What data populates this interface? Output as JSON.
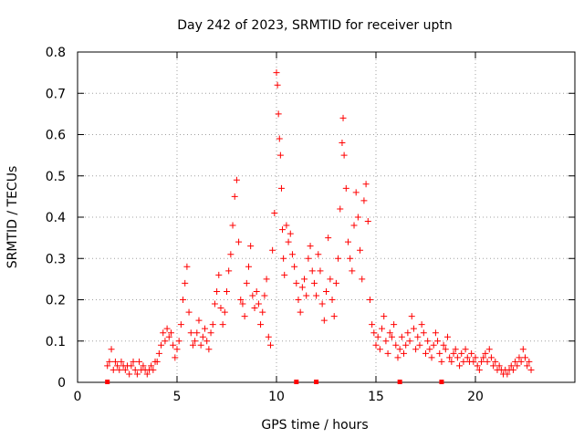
{
  "chart_data": {
    "type": "scatter",
    "title": "Day 242 of 2023, SRMTID for receiver uptn",
    "xlabel": "GPS time / hours",
    "ylabel": "SRMTID / TECUs",
    "xlim": [
      0,
      25
    ],
    "ylim": [
      0,
      0.8
    ],
    "grid": true,
    "marker": "+",
    "color": "#ff0000",
    "x_ticks": [
      {
        "value": 0,
        "label": "0"
      },
      {
        "value": 5,
        "label": "5"
      },
      {
        "value": 10,
        "label": "10"
      },
      {
        "value": 15,
        "label": "15"
      },
      {
        "value": 20,
        "label": "20"
      }
    ],
    "y_ticks": [
      {
        "value": 0,
        "label": "0"
      },
      {
        "value": 0.1,
        "label": "0.1"
      },
      {
        "value": 0.2,
        "label": "0.2"
      },
      {
        "value": 0.3,
        "label": "0.3"
      },
      {
        "value": 0.4,
        "label": "0.4"
      },
      {
        "value": 0.5,
        "label": "0.5"
      },
      {
        "value": 0.6,
        "label": "0.6"
      },
      {
        "value": 0.7,
        "label": "0.7"
      },
      {
        "value": 0.8,
        "label": "0.8"
      }
    ],
    "series": [
      {
        "name": "SRMTID",
        "points": [
          [
            1.5,
            0.04
          ],
          [
            1.6,
            0.05
          ],
          [
            1.7,
            0.08
          ],
          [
            1.8,
            0.03
          ],
          [
            1.9,
            0.05
          ],
          [
            2.0,
            0.04
          ],
          [
            2.1,
            0.03
          ],
          [
            2.2,
            0.05
          ],
          [
            2.3,
            0.04
          ],
          [
            2.4,
            0.03
          ],
          [
            2.5,
            0.04
          ],
          [
            2.6,
            0.02
          ],
          [
            2.7,
            0.04
          ],
          [
            2.8,
            0.05
          ],
          [
            2.9,
            0.03
          ],
          [
            3.0,
            0.02
          ],
          [
            3.1,
            0.05
          ],
          [
            3.2,
            0.03
          ],
          [
            3.3,
            0.04
          ],
          [
            3.4,
            0.03
          ],
          [
            3.5,
            0.02
          ],
          [
            3.6,
            0.03
          ],
          [
            3.7,
            0.04
          ],
          [
            3.8,
            0.03
          ],
          [
            3.9,
            0.05
          ],
          [
            4.0,
            0.05
          ],
          [
            4.1,
            0.07
          ],
          [
            4.2,
            0.09
          ],
          [
            4.3,
            0.12
          ],
          [
            4.4,
            0.1
          ],
          [
            4.5,
            0.13
          ],
          [
            4.6,
            0.11
          ],
          [
            4.7,
            0.12
          ],
          [
            4.8,
            0.09
          ],
          [
            4.9,
            0.06
          ],
          [
            5.0,
            0.08
          ],
          [
            5.1,
            0.1
          ],
          [
            5.2,
            0.14
          ],
          [
            5.3,
            0.2
          ],
          [
            5.4,
            0.24
          ],
          [
            5.5,
            0.28
          ],
          [
            5.6,
            0.17
          ],
          [
            5.7,
            0.12
          ],
          [
            5.8,
            0.09
          ],
          [
            5.9,
            0.1
          ],
          [
            6.0,
            0.12
          ],
          [
            6.1,
            0.15
          ],
          [
            6.2,
            0.09
          ],
          [
            6.3,
            0.11
          ],
          [
            6.4,
            0.13
          ],
          [
            6.5,
            0.1
          ],
          [
            6.6,
            0.08
          ],
          [
            6.7,
            0.12
          ],
          [
            6.8,
            0.14
          ],
          [
            6.9,
            0.19
          ],
          [
            7.0,
            0.22
          ],
          [
            7.1,
            0.26
          ],
          [
            7.2,
            0.18
          ],
          [
            7.3,
            0.14
          ],
          [
            7.4,
            0.17
          ],
          [
            7.5,
            0.22
          ],
          [
            7.6,
            0.27
          ],
          [
            7.7,
            0.31
          ],
          [
            7.8,
            0.38
          ],
          [
            7.9,
            0.45
          ],
          [
            8.0,
            0.49
          ],
          [
            8.1,
            0.34
          ],
          [
            8.2,
            0.2
          ],
          [
            8.3,
            0.19
          ],
          [
            8.4,
            0.16
          ],
          [
            8.5,
            0.24
          ],
          [
            8.6,
            0.28
          ],
          [
            8.7,
            0.33
          ],
          [
            8.8,
            0.21
          ],
          [
            8.9,
            0.18
          ],
          [
            9.0,
            0.22
          ],
          [
            9.1,
            0.19
          ],
          [
            9.2,
            0.14
          ],
          [
            9.3,
            0.17
          ],
          [
            9.4,
            0.21
          ],
          [
            9.5,
            0.25
          ],
          [
            9.6,
            0.11
          ],
          [
            9.7,
            0.09
          ],
          [
            9.8,
            0.32
          ],
          [
            9.9,
            0.41
          ],
          [
            10.0,
            0.75
          ],
          [
            10.05,
            0.72
          ],
          [
            10.1,
            0.65
          ],
          [
            10.15,
            0.59
          ],
          [
            10.2,
            0.55
          ],
          [
            10.25,
            0.47
          ],
          [
            10.3,
            0.37
          ],
          [
            10.35,
            0.3
          ],
          [
            10.4,
            0.26
          ],
          [
            10.5,
            0.38
          ],
          [
            10.6,
            0.34
          ],
          [
            10.7,
            0.36
          ],
          [
            10.8,
            0.31
          ],
          [
            10.9,
            0.28
          ],
          [
            11.0,
            0.24
          ],
          [
            11.1,
            0.2
          ],
          [
            11.2,
            0.17
          ],
          [
            11.3,
            0.23
          ],
          [
            11.4,
            0.25
          ],
          [
            11.5,
            0.21
          ],
          [
            11.6,
            0.3
          ],
          [
            11.7,
            0.33
          ],
          [
            11.8,
            0.27
          ],
          [
            11.9,
            0.24
          ],
          [
            12.0,
            0.21
          ],
          [
            12.1,
            0.31
          ],
          [
            12.2,
            0.27
          ],
          [
            12.3,
            0.19
          ],
          [
            12.4,
            0.15
          ],
          [
            12.5,
            0.22
          ],
          [
            12.6,
            0.35
          ],
          [
            12.7,
            0.25
          ],
          [
            12.8,
            0.2
          ],
          [
            12.9,
            0.16
          ],
          [
            13.0,
            0.24
          ],
          [
            13.1,
            0.3
          ],
          [
            13.2,
            0.42
          ],
          [
            13.3,
            0.58
          ],
          [
            13.35,
            0.64
          ],
          [
            13.4,
            0.55
          ],
          [
            13.5,
            0.47
          ],
          [
            13.6,
            0.34
          ],
          [
            13.7,
            0.3
          ],
          [
            13.8,
            0.27
          ],
          [
            13.9,
            0.38
          ],
          [
            14.0,
            0.46
          ],
          [
            14.1,
            0.4
          ],
          [
            14.2,
            0.32
          ],
          [
            14.3,
            0.25
          ],
          [
            14.4,
            0.44
          ],
          [
            14.5,
            0.48
          ],
          [
            14.6,
            0.39
          ],
          [
            14.7,
            0.2
          ],
          [
            14.8,
            0.14
          ],
          [
            14.9,
            0.12
          ],
          [
            15.0,
            0.09
          ],
          [
            15.1,
            0.11
          ],
          [
            15.2,
            0.08
          ],
          [
            15.3,
            0.13
          ],
          [
            15.4,
            0.16
          ],
          [
            15.5,
            0.1
          ],
          [
            15.6,
            0.07
          ],
          [
            15.7,
            0.12
          ],
          [
            15.8,
            0.11
          ],
          [
            15.9,
            0.14
          ],
          [
            16.0,
            0.09
          ],
          [
            16.1,
            0.06
          ],
          [
            16.2,
            0.08
          ],
          [
            16.3,
            0.11
          ],
          [
            16.4,
            0.07
          ],
          [
            16.5,
            0.09
          ],
          [
            16.6,
            0.12
          ],
          [
            16.7,
            0.1
          ],
          [
            16.8,
            0.16
          ],
          [
            16.9,
            0.13
          ],
          [
            17.0,
            0.08
          ],
          [
            17.1,
            0.11
          ],
          [
            17.2,
            0.09
          ],
          [
            17.3,
            0.14
          ],
          [
            17.4,
            0.12
          ],
          [
            17.5,
            0.07
          ],
          [
            17.6,
            0.1
          ],
          [
            17.7,
            0.08
          ],
          [
            17.8,
            0.06
          ],
          [
            17.9,
            0.09
          ],
          [
            18.0,
            0.12
          ],
          [
            18.1,
            0.1
          ],
          [
            18.2,
            0.07
          ],
          [
            18.3,
            0.05
          ],
          [
            18.4,
            0.09
          ],
          [
            18.5,
            0.08
          ],
          [
            18.6,
            0.11
          ],
          [
            18.7,
            0.06
          ],
          [
            18.8,
            0.05
          ],
          [
            18.9,
            0.07
          ],
          [
            19.0,
            0.08
          ],
          [
            19.1,
            0.06
          ],
          [
            19.2,
            0.04
          ],
          [
            19.3,
            0.07
          ],
          [
            19.4,
            0.05
          ],
          [
            19.5,
            0.08
          ],
          [
            19.6,
            0.06
          ],
          [
            19.7,
            0.05
          ],
          [
            19.8,
            0.07
          ],
          [
            19.9,
            0.05
          ],
          [
            20.0,
            0.06
          ],
          [
            20.1,
            0.04
          ],
          [
            20.2,
            0.03
          ],
          [
            20.3,
            0.05
          ],
          [
            20.4,
            0.06
          ],
          [
            20.5,
            0.07
          ],
          [
            20.6,
            0.05
          ],
          [
            20.7,
            0.08
          ],
          [
            20.8,
            0.06
          ],
          [
            20.9,
            0.04
          ],
          [
            21.0,
            0.05
          ],
          [
            21.1,
            0.03
          ],
          [
            21.2,
            0.04
          ],
          [
            21.3,
            0.03
          ],
          [
            21.4,
            0.02
          ],
          [
            21.5,
            0.03
          ],
          [
            21.6,
            0.02
          ],
          [
            21.7,
            0.03
          ],
          [
            21.8,
            0.04
          ],
          [
            21.9,
            0.03
          ],
          [
            22.0,
            0.05
          ],
          [
            22.1,
            0.04
          ],
          [
            22.2,
            0.06
          ],
          [
            22.3,
            0.05
          ],
          [
            22.4,
            0.08
          ],
          [
            22.5,
            0.06
          ],
          [
            22.6,
            0.04
          ],
          [
            22.7,
            0.05
          ],
          [
            22.8,
            0.03
          ]
        ]
      }
    ],
    "baseline_marks": [
      1.5,
      11.0,
      12.0,
      16.2,
      18.3
    ]
  }
}
